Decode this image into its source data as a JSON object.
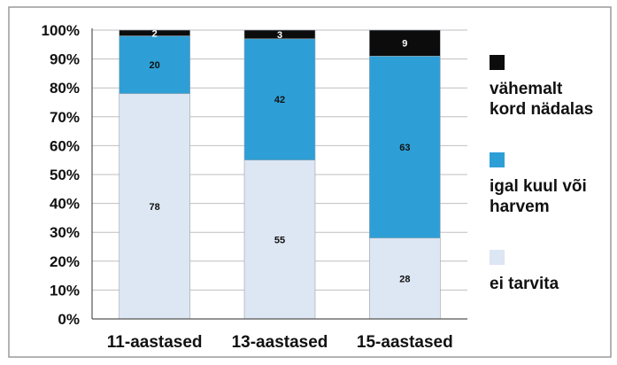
{
  "chart_data": {
    "type": "bar",
    "stacked": true,
    "categories": [
      "11-aastased",
      "13-aastased",
      "15-aastased"
    ],
    "series": [
      {
        "name": "ei tarvita",
        "values": [
          78,
          55,
          28
        ],
        "color": "#dde6f3"
      },
      {
        "name": "igal kuul või harvem",
        "values": [
          20,
          42,
          63
        ],
        "color": "#2e9fd6"
      },
      {
        "name": "vähemalt kord nädalas",
        "values": [
          2,
          3,
          9
        ],
        "color": "#0c0c0c"
      }
    ],
    "y_ticks": [
      "0%",
      "10%",
      "20%",
      "30%",
      "40%",
      "50%",
      "60%",
      "70%",
      "80%",
      "90%",
      "100%"
    ],
    "ylim": [
      0,
      100
    ],
    "grid": true,
    "legend_position": "right",
    "legend_order": [
      "vähemalt kord nädalas",
      "igal kuul või harvem",
      "ei tarvita"
    ],
    "legend_lines": {
      "vähemalt kord nädalas": [
        "vähemalt",
        "kord nädalas"
      ],
      "igal kuul või harvem": [
        "igal kuul või",
        "harvem"
      ],
      "ei tarvita": [
        "ei tarvita"
      ]
    }
  }
}
